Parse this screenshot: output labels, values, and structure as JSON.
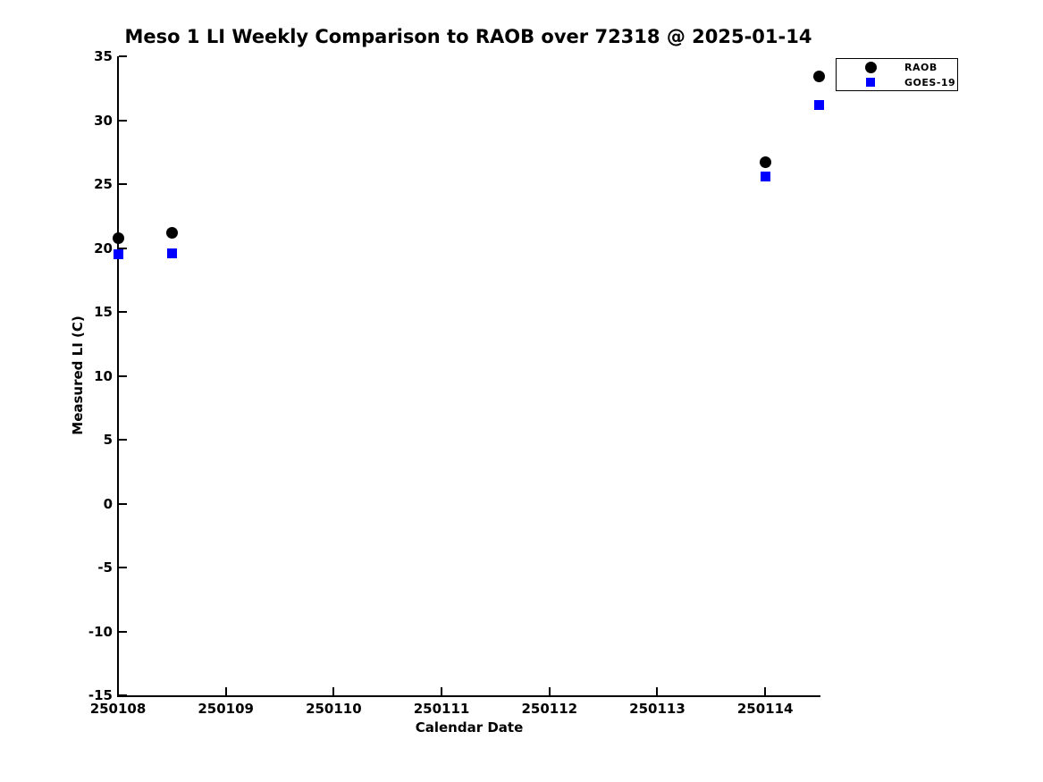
{
  "title": "Meso 1 LI Weekly Comparison to RAOB over 72318 @ 2025-01-14",
  "colors": {
    "background": "#ffffff",
    "axis": "#000000",
    "text": "#000000",
    "raob_marker": "#000000",
    "goes19_marker": "#0000ff"
  },
  "legend": {
    "entries": [
      {
        "label": "RAOB",
        "marker": "circle",
        "icon": "filled-circle-marker-icon",
        "color": "#000000"
      },
      {
        "label": "GOES-19",
        "marker": "square",
        "icon": "filled-square-marker-icon",
        "color": "#0000ff"
      }
    ],
    "position": "top-right"
  },
  "chart_data": {
    "type": "scatter",
    "title": "Meso 1 LI Weekly Comparison to RAOB over 72318 @ 2025-01-14",
    "xlabel": "Calendar Date",
    "ylabel": "Measured LI (C)",
    "xlim": [
      250108,
      250114.5
    ],
    "ylim": [
      -15,
      35
    ],
    "x_ticks": [
      250108,
      250109,
      250110,
      250111,
      250112,
      250113,
      250114
    ],
    "y_ticks": [
      -15,
      -10,
      -5,
      0,
      5,
      10,
      15,
      20,
      25,
      30,
      35
    ],
    "grid": false,
    "legend_position": "top-right",
    "series": [
      {
        "name": "RAOB",
        "marker": "circle",
        "color": "#000000",
        "points": [
          {
            "x": 250108.0,
            "y": 20.8
          },
          {
            "x": 250108.5,
            "y": 21.2
          },
          {
            "x": 250114.0,
            "y": 26.7
          },
          {
            "x": 250114.5,
            "y": 33.4
          }
        ]
      },
      {
        "name": "GOES-19",
        "marker": "square",
        "color": "#0000ff",
        "points": [
          {
            "x": 250108.0,
            "y": 19.5
          },
          {
            "x": 250108.5,
            "y": 19.6
          },
          {
            "x": 250114.0,
            "y": 25.6
          },
          {
            "x": 250114.5,
            "y": 31.2
          }
        ]
      }
    ]
  }
}
